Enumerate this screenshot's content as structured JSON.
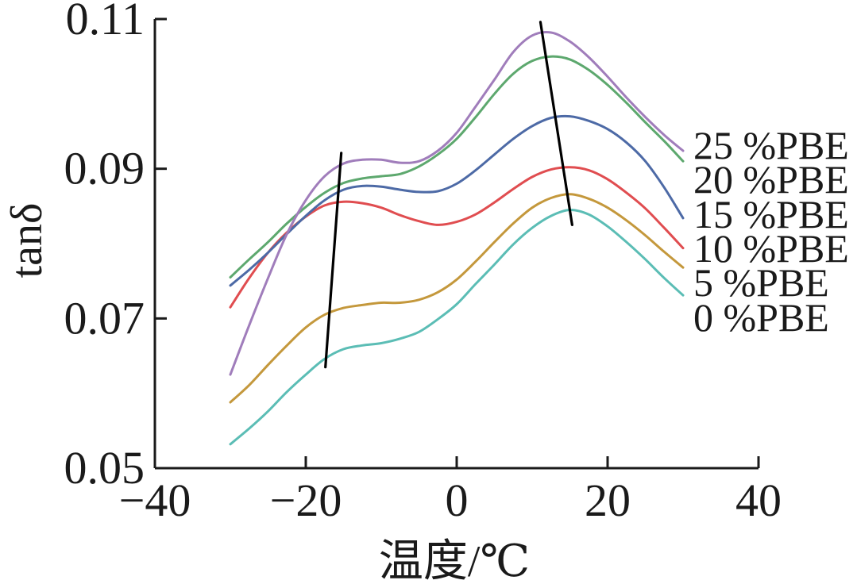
{
  "chart_data": {
    "type": "line",
    "xlabel": "温度/℃",
    "ylabel": "tanδ",
    "xlim": [
      -40,
      40
    ],
    "ylim": [
      0.05,
      0.11
    ],
    "x_ticks": [
      -40,
      -20,
      0,
      20,
      40
    ],
    "x_tick_labels": [
      "−40",
      "−20",
      "0",
      "20",
      "40"
    ],
    "y_ticks": [
      0.05,
      0.07,
      0.09,
      0.11
    ],
    "y_tick_labels": [
      "0.05",
      "0.07",
      "0.09",
      "0.11"
    ],
    "grid": false,
    "legend": "right",
    "x": [
      -30,
      -27.5,
      -25,
      -22.5,
      -20,
      -17.5,
      -15,
      -12.5,
      -10,
      -7.5,
      -5,
      -2.5,
      0,
      2.5,
      5,
      7.5,
      10,
      12.5,
      15,
      17.5,
      20,
      22.5,
      25,
      27.5,
      30
    ],
    "series": [
      {
        "name": "25 %PBE",
        "color": "#a07dbb",
        "values": [
          0.0625,
          0.0691,
          0.0754,
          0.0813,
          0.0858,
          0.089,
          0.0907,
          0.0912,
          0.0912,
          0.0908,
          0.091,
          0.0924,
          0.0948,
          0.0983,
          0.1019,
          0.1056,
          0.1078,
          0.1082,
          0.107,
          0.1049,
          0.1023,
          0.0995,
          0.0969,
          0.0945,
          0.0924
        ]
      },
      {
        "name": "20 %PBE",
        "color": "#5da86e",
        "values": [
          0.0755,
          0.0779,
          0.0802,
          0.0827,
          0.0849,
          0.0868,
          0.0881,
          0.0887,
          0.089,
          0.0893,
          0.0903,
          0.0919,
          0.094,
          0.0969,
          0.1,
          0.1027,
          0.1044,
          0.105,
          0.1046,
          0.1032,
          0.1012,
          0.0988,
          0.0962,
          0.0937,
          0.091
        ]
      },
      {
        "name": "15 %PBE",
        "color": "#4d6aa6",
        "values": [
          0.0744,
          0.0765,
          0.0788,
          0.0813,
          0.0837,
          0.0858,
          0.0872,
          0.0877,
          0.0876,
          0.0872,
          0.0869,
          0.087,
          0.088,
          0.0898,
          0.0919,
          0.094,
          0.0957,
          0.0968,
          0.097,
          0.0964,
          0.0953,
          0.0935,
          0.091,
          0.0875,
          0.0834
        ]
      },
      {
        "name": "10 %PBE",
        "color": "#e04d50",
        "values": [
          0.0715,
          0.0754,
          0.0788,
          0.0815,
          0.0836,
          0.0851,
          0.0856,
          0.0854,
          0.0848,
          0.0838,
          0.083,
          0.0825,
          0.0829,
          0.0839,
          0.0855,
          0.0873,
          0.0889,
          0.0899,
          0.0902,
          0.0898,
          0.0886,
          0.0868,
          0.0847,
          0.0821,
          0.0794
        ]
      },
      {
        "name": "5 %PBE",
        "color": "#c4983c",
        "values": [
          0.0588,
          0.0611,
          0.0638,
          0.0664,
          0.0688,
          0.0705,
          0.0714,
          0.0718,
          0.0721,
          0.0721,
          0.0725,
          0.0735,
          0.0752,
          0.0776,
          0.0802,
          0.0827,
          0.0848,
          0.0861,
          0.0866,
          0.086,
          0.0848,
          0.0831,
          0.0811,
          0.0789,
          0.0768
        ]
      },
      {
        "name": "0 %PBE",
        "color": "#5bbdb5",
        "values": [
          0.0532,
          0.0553,
          0.0576,
          0.0602,
          0.0625,
          0.0646,
          0.0659,
          0.0664,
          0.0667,
          0.0673,
          0.0682,
          0.0699,
          0.0719,
          0.0746,
          0.0772,
          0.0799,
          0.0821,
          0.0837,
          0.0845,
          0.0839,
          0.0823,
          0.0802,
          0.0779,
          0.0754,
          0.0731
        ]
      }
    ],
    "trend_lines": [
      {
        "color": "#000000",
        "x": [
          -17.4,
          -15.3
        ],
        "y": [
          0.0635,
          0.0921
        ]
      },
      {
        "color": "#000000",
        "x": [
          11.1,
          15.3
        ],
        "y": [
          0.1096,
          0.0825
        ]
      }
    ]
  }
}
